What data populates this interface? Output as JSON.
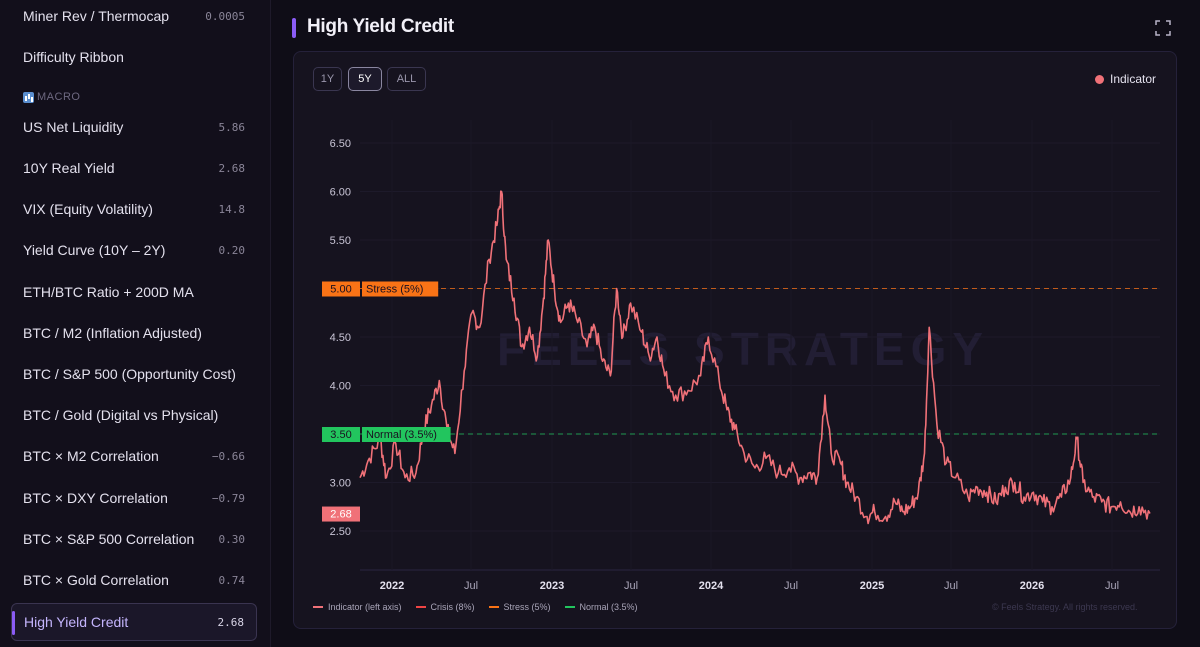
{
  "sidebar": {
    "top_items": [
      {
        "label": "Miner Rev / Thermocap",
        "value": "0.0005"
      },
      {
        "label": "Difficulty Ribbon",
        "value": ""
      }
    ],
    "section_label": "MACRO",
    "macro_items": [
      {
        "label": "US Net Liquidity",
        "value": "5.86"
      },
      {
        "label": "10Y Real Yield",
        "value": "2.68"
      },
      {
        "label": "VIX (Equity Volatility)",
        "value": "14.8"
      },
      {
        "label": "Yield Curve (10Y – 2Y)",
        "value": "0.20"
      },
      {
        "label": "ETH/BTC Ratio + 200D MA",
        "value": ""
      },
      {
        "label": "BTC / M2 (Inflation Adjusted)",
        "value": ""
      },
      {
        "label": "BTC / S&P 500 (Opportunity Cost)",
        "value": ""
      },
      {
        "label": "BTC / Gold (Digital vs Physical)",
        "value": ""
      },
      {
        "label": "BTC × M2 Correlation",
        "value": "−0.66"
      },
      {
        "label": "BTC × DXY Correlation",
        "value": "−0.79"
      },
      {
        "label": "BTC × S&P 500 Correlation",
        "value": "0.30"
      },
      {
        "label": "BTC × Gold Correlation",
        "value": "0.74"
      }
    ],
    "active_item": {
      "label": "High Yield Credit",
      "value": "2.68"
    }
  },
  "main": {
    "title": "High Yield Credit",
    "range_buttons": [
      "1Y",
      "5Y",
      "ALL"
    ],
    "active_range": "5Y",
    "legend_top_label": "Indicator",
    "watermark": "FEELS STRATEGY",
    "copyright": "© Feels Strategy. All rights reserved."
  },
  "colors": {
    "indicator": "#f07178",
    "stress": "#f97316",
    "normal": "#22c55e",
    "crisis": "#ef4444",
    "accent": "#8b5cf6"
  },
  "chart_data": {
    "type": "line",
    "ylim": [
      2.4,
      6.8
    ],
    "y_ticks": [
      "6.50",
      "6.00",
      "5.50",
      "5.00",
      "4.50",
      "4.00",
      "3.50",
      "3.00",
      "2.50"
    ],
    "x_ticks": [
      "2022",
      "Jul",
      "2023",
      "Jul",
      "2024",
      "Jul",
      "2025",
      "Jul",
      "2026",
      "Jul"
    ],
    "x_range": [
      2021.59,
      2026.67
    ],
    "reference_lines": [
      {
        "name": "Stress (5%)",
        "value": 5.0,
        "label": "5.00",
        "tag": "Stress (5%)"
      },
      {
        "name": "Normal (3.5%)",
        "value": 3.5,
        "label": "3.50",
        "tag": "Normal (3.5%)"
      }
    ],
    "current_value_label": "2.68",
    "current_value": 2.68,
    "legend": [
      {
        "name": "Indicator (left axis)",
        "color": "#f07178"
      },
      {
        "name": "Crisis (8%)",
        "color": "#ef4444"
      },
      {
        "name": "Stress (5%)",
        "color": "#f97316"
      },
      {
        "name": "Normal (3.5%)",
        "color": "#22c55e"
      }
    ],
    "series": [
      {
        "name": "Indicator",
        "points": [
          [
            2021.59,
            3.05
          ],
          [
            2021.65,
            3.25
          ],
          [
            2021.72,
            3.45
          ],
          [
            2021.76,
            3.05
          ],
          [
            2021.82,
            3.4
          ],
          [
            2021.88,
            3.05
          ],
          [
            2021.95,
            3.1
          ],
          [
            2022.0,
            3.55
          ],
          [
            2022.05,
            3.8
          ],
          [
            2022.1,
            4.05
          ],
          [
            2022.15,
            3.55
          ],
          [
            2022.2,
            3.3
          ],
          [
            2022.26,
            4.15
          ],
          [
            2022.31,
            4.75
          ],
          [
            2022.36,
            4.6
          ],
          [
            2022.42,
            5.3
          ],
          [
            2022.47,
            5.65
          ],
          [
            2022.5,
            6.0
          ],
          [
            2022.53,
            5.3
          ],
          [
            2022.58,
            4.9
          ],
          [
            2022.63,
            4.4
          ],
          [
            2022.68,
            4.6
          ],
          [
            2022.73,
            4.3
          ],
          [
            2022.77,
            4.9
          ],
          [
            2022.8,
            5.5
          ],
          [
            2022.84,
            5.0
          ],
          [
            2022.88,
            4.65
          ],
          [
            2022.93,
            4.85
          ],
          [
            2022.98,
            4.7
          ],
          [
            2023.05,
            4.4
          ],
          [
            2023.1,
            4.6
          ],
          [
            2023.15,
            4.25
          ],
          [
            2023.2,
            4.1
          ],
          [
            2023.24,
            5.0
          ],
          [
            2023.28,
            4.5
          ],
          [
            2023.33,
            4.85
          ],
          [
            2023.4,
            4.55
          ],
          [
            2023.45,
            4.3
          ],
          [
            2023.5,
            4.5
          ],
          [
            2023.55,
            4.1
          ],
          [
            2023.62,
            3.9
          ],
          [
            2023.7,
            3.95
          ],
          [
            2023.78,
            4.1
          ],
          [
            2023.83,
            4.5
          ],
          [
            2023.9,
            4.05
          ],
          [
            2023.95,
            3.75
          ],
          [
            2024.0,
            3.55
          ],
          [
            2024.06,
            3.3
          ],
          [
            2024.13,
            3.15
          ],
          [
            2024.2,
            3.25
          ],
          [
            2024.28,
            3.1
          ],
          [
            2024.35,
            3.15
          ],
          [
            2024.42,
            3.05
          ],
          [
            2024.48,
            3.1
          ],
          [
            2024.53,
            3.05
          ],
          [
            2024.58,
            3.9
          ],
          [
            2024.62,
            3.3
          ],
          [
            2024.68,
            3.2
          ],
          [
            2024.72,
            3.0
          ],
          [
            2024.78,
            2.85
          ],
          [
            2024.85,
            2.65
          ],
          [
            2024.9,
            2.7
          ],
          [
            2024.97,
            2.65
          ],
          [
            2025.03,
            2.8
          ],
          [
            2025.08,
            2.7
          ],
          [
            2025.13,
            2.75
          ],
          [
            2025.18,
            2.9
          ],
          [
            2025.22,
            3.3
          ],
          [
            2025.25,
            4.6
          ],
          [
            2025.3,
            3.6
          ],
          [
            2025.36,
            3.2
          ],
          [
            2025.42,
            3.05
          ],
          [
            2025.5,
            2.85
          ],
          [
            2025.56,
            2.95
          ],
          [
            2025.62,
            2.9
          ],
          [
            2025.68,
            2.8
          ],
          [
            2025.74,
            2.95
          ],
          [
            2025.8,
            3.0
          ],
          [
            2025.86,
            2.85
          ],
          [
            2025.92,
            2.9
          ],
          [
            2025.98,
            2.8
          ],
          [
            2026.04,
            2.75
          ],
          [
            2026.1,
            2.85
          ],
          [
            2026.16,
            3.05
          ],
          [
            2026.2,
            3.45
          ],
          [
            2026.24,
            3.0
          ],
          [
            2026.3,
            2.85
          ],
          [
            2026.36,
            2.8
          ],
          [
            2026.42,
            2.75
          ],
          [
            2026.48,
            2.8
          ],
          [
            2026.54,
            2.7
          ],
          [
            2026.6,
            2.75
          ],
          [
            2026.67,
            2.68
          ]
        ]
      }
    ]
  }
}
